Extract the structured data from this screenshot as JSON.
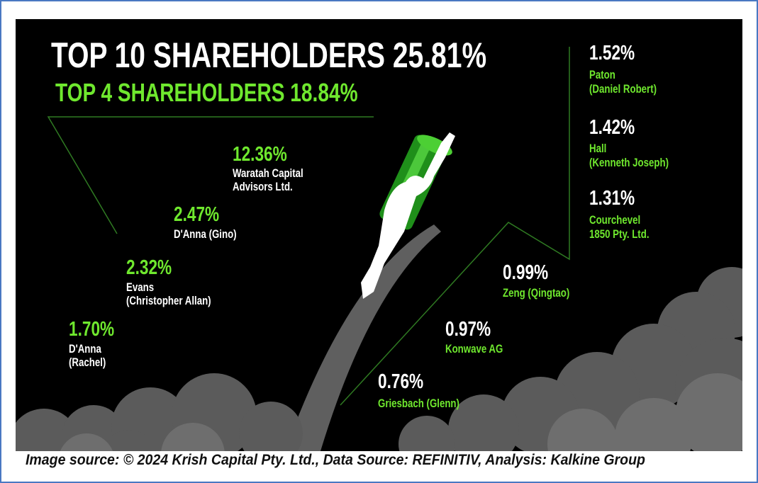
{
  "title": "TOP 10 SHAREHOLDERS 25.81%",
  "subtitle": "TOP 4 SHAREHOLDERS 18.84%",
  "shareholders": [
    {
      "pct": "12.36%",
      "name1": "Waratah Capital",
      "name2": "Advisors Ltd."
    },
    {
      "pct": "2.47%",
      "name1": "D'Anna (Gino)"
    },
    {
      "pct": "2.32%",
      "name1": "Evans",
      "name2": "(Christopher Allan)"
    },
    {
      "pct": "1.70%",
      "name1": "D'Anna",
      "name2": "(Rachel)"
    },
    {
      "pct": "1.52%",
      "name1": "Paton",
      "name2": "(Daniel Robert)"
    },
    {
      "pct": "1.42%",
      "name1": "Hall",
      "name2": "(Kenneth Joseph)"
    },
    {
      "pct": "1.31%",
      "name1": "Courchevel",
      "name2": "1850 Pty. Ltd."
    },
    {
      "pct": "0.99%",
      "name1": "Zeng (Qingtao)"
    },
    {
      "pct": "0.97%",
      "name1": "Konwave AG"
    },
    {
      "pct": "0.76%",
      "name1": "Griesbach (Glenn)"
    }
  ],
  "caption": "Image source: © 2024 Krish Capital Pty. Ltd., Data Source: REFINITIV, Analysis: Kalkine Group",
  "colors": {
    "accent": "#6fe82e",
    "background": "#000000",
    "cloud": "#5a5a5a",
    "border": "#4a78c2"
  }
}
